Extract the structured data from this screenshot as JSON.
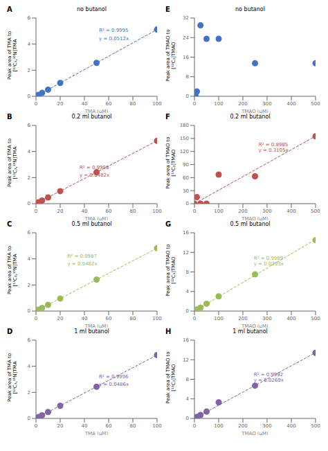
{
  "chart_data": [
    {
      "type": "scatter",
      "label": "A",
      "title": "no butanol",
      "xlabel": "TMA (μM)",
      "ylabel": "Peak area of TMA to\n[¹³C₃,¹⁵N]TMA",
      "xlim": [
        0,
        100
      ],
      "ylim": [
        0,
        6
      ],
      "xticks": [
        0,
        20,
        40,
        60,
        80,
        100
      ],
      "yticks": [
        0,
        2,
        4,
        6
      ],
      "series": [
        {
          "type": "scatter",
          "color": "#4472C4",
          "marker": "circle",
          "x": [
            0,
            2,
            5,
            10,
            20,
            50,
            100
          ],
          "values": [
            0.0,
            0.1,
            0.26,
            0.51,
            1.02,
            2.56,
            5.12
          ]
        },
        {
          "type": "line",
          "color": "#4472C4",
          "line_style": "dashed",
          "x": [
            0,
            100
          ],
          "values": [
            0,
            5.12
          ]
        }
      ],
      "annotations": [
        {
          "text": "R² = 0.9995",
          "x": 52,
          "y": 4.95,
          "color": "#4472C4"
        },
        {
          "text": "y = 0.0512x",
          "x": 52,
          "y": 4.3,
          "color": "#4472C4"
        }
      ]
    },
    {
      "type": "scatter",
      "label": "B",
      "title": "0.2 ml butanol",
      "xlabel": "TMA (μM)",
      "ylabel": "Peak area of TMA to\n[¹³C₃,¹⁵N]TMA",
      "xlim": [
        0,
        100
      ],
      "ylim": [
        0,
        6
      ],
      "xticks": [
        0,
        20,
        40,
        60,
        80,
        100
      ],
      "yticks": [
        0,
        2,
        4,
        6
      ],
      "series": [
        {
          "type": "scatter",
          "color": "#C0504D",
          "marker": "circle",
          "x": [
            0,
            2,
            5,
            10,
            20,
            50,
            100
          ],
          "values": [
            0.0,
            0.1,
            0.24,
            0.48,
            0.96,
            2.41,
            4.82
          ]
        },
        {
          "type": "line",
          "color": "#C0504D",
          "line_style": "dashed",
          "x": [
            0,
            100
          ],
          "values": [
            0,
            4.82
          ]
        }
      ],
      "annotations": [
        {
          "text": "R² = 0.9998",
          "x": 36,
          "y": 2.65,
          "color": "#C0504D"
        },
        {
          "text": "y = 0.0482x",
          "x": 36,
          "y": 2.05,
          "color": "#C0504D"
        }
      ]
    },
    {
      "type": "scatter",
      "label": "C",
      "title": "0.5 ml butanol",
      "xlabel": "TMA (μM)",
      "ylabel": "Peak area of TMA to\n[¹³C₃,¹⁵N]TMA",
      "xlim": [
        0,
        100
      ],
      "ylim": [
        0,
        6
      ],
      "xticks": [
        0,
        20,
        40,
        60,
        80,
        100
      ],
      "yticks": [
        0,
        2,
        4,
        6
      ],
      "series": [
        {
          "type": "scatter",
          "color": "#9BBB59",
          "marker": "circle",
          "x": [
            0,
            2,
            5,
            10,
            20,
            50,
            100
          ],
          "values": [
            0.0,
            0.1,
            0.24,
            0.48,
            0.96,
            2.41,
            4.82
          ]
        },
        {
          "type": "line",
          "color": "#9BBB59",
          "line_style": "dashed",
          "x": [
            0,
            100
          ],
          "values": [
            0,
            4.82
          ]
        }
      ],
      "annotations": [
        {
          "text": "R² = 0.9987",
          "x": 26,
          "y": 4.1,
          "color": "#9BBB59"
        },
        {
          "text": "y = 0.0482x",
          "x": 26,
          "y": 3.5,
          "color": "#9BBB59"
        }
      ]
    },
    {
      "type": "scatter",
      "label": "D",
      "title": "1 ml butanol",
      "xlabel": "TMA (μM)",
      "ylabel": "Peak area of TMA to\n[¹³C₃,¹⁵N]TMA",
      "xlim": [
        0,
        100
      ],
      "ylim": [
        0,
        6
      ],
      "xticks": [
        0,
        20,
        40,
        60,
        80,
        100
      ],
      "yticks": [
        0,
        2,
        4,
        6
      ],
      "series": [
        {
          "type": "scatter",
          "color": "#8064A2",
          "marker": "circle",
          "x": [
            0,
            2,
            5,
            10,
            20,
            50,
            100
          ],
          "values": [
            0.0,
            0.1,
            0.24,
            0.49,
            0.97,
            2.43,
            4.86
          ]
        },
        {
          "type": "line",
          "color": "#8064A2",
          "line_style": "dashed",
          "x": [
            0,
            100
          ],
          "values": [
            0,
            4.86
          ]
        }
      ],
      "annotations": [
        {
          "text": "R² = 0.9996",
          "x": 52,
          "y": 3.1,
          "color": "#8064A2"
        },
        {
          "text": "y = 0.0486x",
          "x": 52,
          "y": 2.5,
          "color": "#8064A2"
        }
      ]
    },
    {
      "type": "scatter",
      "label": "E",
      "title": "no butanol",
      "xlabel": "TMAO (μM)",
      "ylabel": "Peak area of TMAO to\n[¹³C₃]TMAO",
      "xlim": [
        0,
        500
      ],
      "ylim": [
        0,
        32
      ],
      "xticks": [
        0,
        100,
        200,
        300,
        400,
        500
      ],
      "yticks": [
        0,
        8,
        16,
        24,
        32
      ],
      "series": [
        {
          "type": "scatter",
          "color": "#4472C4",
          "marker": "circle",
          "x": [
            0,
            5,
            10,
            25,
            50,
            100,
            250,
            500
          ],
          "values": [
            0.0,
            0.0,
            2.0,
            29.0,
            23.5,
            23.5,
            13.5,
            13.5
          ]
        }
      ]
    },
    {
      "type": "scatter",
      "label": "F",
      "title": "0.2 ml butanol",
      "xlabel": "TMAO (μM)",
      "ylabel": "Peak area of TMAO to\n[¹³C₃]TMAO",
      "xlim": [
        0,
        500
      ],
      "ylim": [
        0,
        180
      ],
      "xticks": [
        0,
        100,
        200,
        300,
        400,
        500
      ],
      "yticks": [
        0,
        30,
        60,
        90,
        120,
        150,
        180
      ],
      "series": [
        {
          "type": "scatter",
          "color": "#C0504D",
          "marker": "circle",
          "x": [
            0,
            10,
            25,
            50,
            100,
            250,
            500
          ],
          "values": [
            0.0,
            15.0,
            0.0,
            0.0,
            67.0,
            63.0,
            155.0
          ]
        },
        {
          "type": "line",
          "color": "#C0504D",
          "line_style": "dashed",
          "x": [
            0,
            500
          ],
          "values": [
            0,
            155.25
          ]
        }
      ],
      "annotations": [
        {
          "text": "R² = 0.8985",
          "x": 265,
          "y": 132,
          "color": "#C0504D"
        },
        {
          "text": "y = 0.3105x",
          "x": 265,
          "y": 120,
          "color": "#C0504D"
        }
      ]
    },
    {
      "type": "scatter",
      "label": "G",
      "title": "0.5 ml butanol",
      "xlabel": "TMAO (μM)",
      "ylabel": "Peak area of TMAO to\n[¹³C₃]TMAO",
      "xlim": [
        0,
        500
      ],
      "ylim": [
        0,
        16
      ],
      "xticks": [
        0,
        100,
        200,
        300,
        400,
        500
      ],
      "yticks": [
        0,
        4,
        8,
        12,
        16
      ],
      "series": [
        {
          "type": "scatter",
          "color": "#9BBB59",
          "marker": "circle",
          "x": [
            0,
            10,
            25,
            50,
            100,
            250,
            500
          ],
          "values": [
            0.0,
            0.3,
            0.7,
            1.5,
            3.0,
            7.5,
            14.5
          ]
        },
        {
          "type": "line",
          "color": "#9BBB59",
          "line_style": "dashed",
          "x": [
            0,
            500
          ],
          "values": [
            0,
            14.65
          ]
        }
      ],
      "annotations": [
        {
          "text": "R² = 0.9989",
          "x": 245,
          "y": 10.5,
          "color": "#9BBB59"
        },
        {
          "text": "y = 0.0293x",
          "x": 245,
          "y": 9.3,
          "color": "#9BBB59"
        }
      ]
    },
    {
      "type": "scatter",
      "label": "H",
      "title": "1 ml butanol",
      "xlabel": "TMAO (μM)",
      "ylabel": "Peak area of TMAO to\n[¹³C₃]TMAO",
      "xlim": [
        0,
        500
      ],
      "ylim": [
        0,
        16
      ],
      "xticks": [
        0,
        100,
        200,
        300,
        400,
        500
      ],
      "yticks": [
        0,
        4,
        8,
        12,
        16
      ],
      "series": [
        {
          "type": "scatter",
          "color": "#8064A2",
          "marker": "circle",
          "x": [
            0,
            10,
            25,
            50,
            100,
            250,
            500
          ],
          "values": [
            0.0,
            0.3,
            0.7,
            1.4,
            3.3,
            6.7,
            13.4
          ]
        },
        {
          "type": "line",
          "color": "#8064A2",
          "line_style": "dashed",
          "x": [
            0,
            500
          ],
          "values": [
            0,
            13.45
          ]
        }
      ],
      "annotations": [
        {
          "text": "R² = 0.9992",
          "x": 245,
          "y": 8.7,
          "color": "#8064A2"
        },
        {
          "text": "y = 0.0269x",
          "x": 245,
          "y": 7.5,
          "color": "#8064A2"
        }
      ]
    }
  ]
}
